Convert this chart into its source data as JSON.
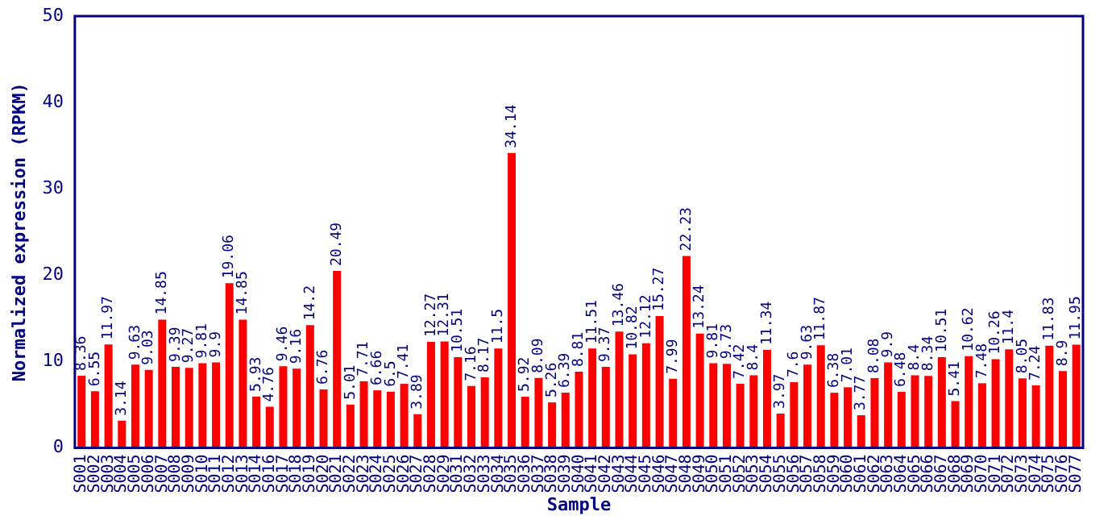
{
  "chart_data": {
    "type": "bar",
    "xlabel": "Sample",
    "ylabel": "Normalized expression (RPKM)",
    "categories": [
      "S001",
      "S002",
      "S003",
      "S004",
      "S005",
      "S006",
      "S007",
      "S008",
      "S009",
      "S010",
      "S011",
      "S012",
      "S013",
      "S014",
      "S016",
      "S017",
      "S018",
      "S019",
      "S020",
      "S021",
      "S022",
      "S023",
      "S024",
      "S025",
      "S026",
      "S027",
      "S028",
      "S029",
      "S031",
      "S032",
      "S033",
      "S034",
      "S035",
      "S036",
      "S037",
      "S038",
      "S039",
      "S040",
      "S041",
      "S042",
      "S043",
      "S044",
      "S045",
      "S046",
      "S047",
      "S048",
      "S049",
      "S050",
      "S051",
      "S052",
      "S053",
      "S054",
      "S055",
      "S056",
      "S057",
      "S058",
      "S059",
      "S060",
      "S061",
      "S062",
      "S063",
      "S064",
      "S065",
      "S066",
      "S067",
      "S068",
      "S069",
      "S070",
      "S071",
      "S072",
      "S073",
      "S074",
      "S075",
      "S076",
      "S077"
    ],
    "values": [
      8.36,
      6.55,
      11.97,
      3.14,
      9.63,
      9.03,
      14.85,
      9.39,
      9.27,
      9.81,
      9.9,
      19.06,
      14.85,
      5.93,
      4.76,
      9.46,
      9.16,
      14.2,
      6.76,
      20.49,
      5.01,
      7.71,
      6.66,
      6.5,
      7.41,
      3.89,
      12.27,
      12.31,
      10.51,
      7.16,
      8.17,
      11.5,
      34.14,
      5.92,
      8.09,
      5.26,
      6.39,
      8.81,
      11.51,
      9.37,
      13.46,
      10.82,
      12.12,
      15.27,
      7.99,
      22.23,
      13.24,
      9.81,
      9.73,
      7.42,
      8.4,
      11.34,
      3.97,
      7.6,
      9.63,
      11.87,
      6.38,
      7.01,
      3.77,
      8.08,
      9.9,
      6.48,
      8.4,
      8.34,
      10.51,
      5.41,
      10.62,
      7.48,
      10.26,
      11.4,
      8.05,
      7.24,
      11.83,
      8.9,
      11.95
    ],
    "color": "#ff0000",
    "ylim": [
      0,
      50
    ],
    "yticks": [
      0,
      10,
      20,
      30,
      40,
      50
    ],
    "grid": false,
    "legend": false,
    "data_labels": true
  }
}
